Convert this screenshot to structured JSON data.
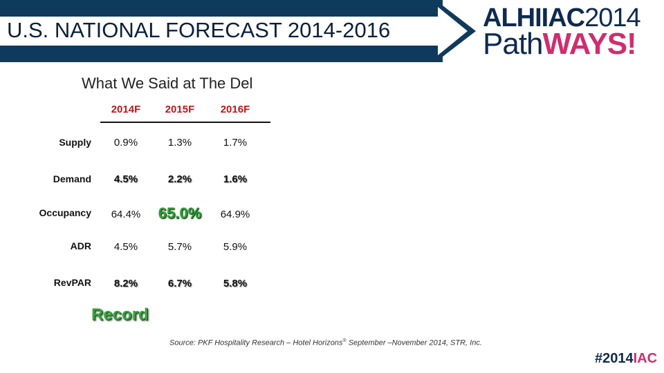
{
  "header": {
    "title": "U.S. NATIONAL FORECAST 2014-2016",
    "banner_color": "#0e3a5c",
    "logo": {
      "line1_bold": "ALHI",
      "line1_mid": "IAC",
      "line1_year": "2014",
      "line2_a": "Path",
      "line2_b": "WAYS!"
    }
  },
  "subtitle": "What We Said at The Del",
  "table": {
    "columns": [
      "2014F",
      "2015F",
      "2016F"
    ],
    "rows": [
      {
        "label": "Supply",
        "values": [
          "0.9%",
          "1.3%",
          "1.7%"
        ]
      },
      {
        "label": "Demand",
        "values": [
          "4.5%",
          "2.2%",
          "1.6%"
        ]
      },
      {
        "label": "Occupancy",
        "values": [
          "64.4%",
          "65.0%",
          "64.9%"
        ]
      },
      {
        "label": "ADR",
        "values": [
          "4.5%",
          "5.7%",
          "5.9%"
        ]
      },
      {
        "label": "RevPAR",
        "values": [
          "8.2%",
          "6.7%",
          "5.8%"
        ]
      }
    ]
  },
  "callout": "Record",
  "source": {
    "prefix": "Source: PKF Hospitality Research – Hotel Horizons",
    "reg": "®",
    "suffix": " September –November 2014,  STR, Inc."
  },
  "hashtag": {
    "a": "#2014",
    "b": "IAC"
  },
  "colors": {
    "accent_red": "#c0151b",
    "record_green": "#3aa33f",
    "brand_pink": "#cf2d6f",
    "navy": "#0e2a4f"
  }
}
